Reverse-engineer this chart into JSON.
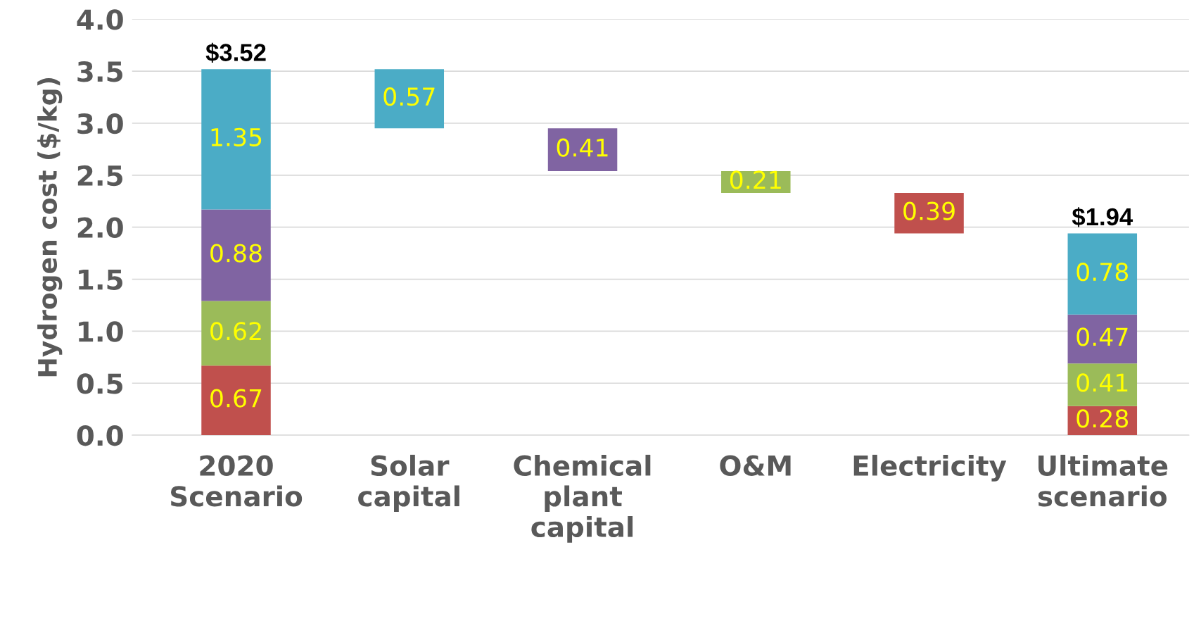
{
  "chart_data": {
    "type": "bar",
    "ylabel": "Hydrogen cost ($/kg)",
    "categories": [
      "2020\nScenario",
      "Solar\ncapital",
      "Chemical\nplant\ncapital",
      "O&M",
      "Electricity",
      "Ultimate\nscenario"
    ],
    "stacked": true,
    "series": [
      {
        "color": "#c0504d",
        "values": [
          0.67,
          null,
          null,
          null,
          null,
          0.28
        ]
      },
      {
        "color": "#9bbb59",
        "values": [
          0.62,
          null,
          null,
          null,
          null,
          0.41
        ]
      },
      {
        "color": "#8064a2",
        "values": [
          0.88,
          null,
          null,
          null,
          null,
          0.47
        ]
      },
      {
        "color": "#4bacc6",
        "values": [
          1.35,
          null,
          null,
          null,
          null,
          0.78
        ]
      },
      {
        "colors": [
          null,
          "#4bacc6",
          "#8064a2",
          "#9bbb59",
          "#c0504d",
          null
        ],
        "values": [
          null,
          0.57,
          0.41,
          0.21,
          0.39,
          null
        ],
        "base": [
          null,
          2.95,
          2.54,
          2.33,
          1.94,
          null
        ]
      }
    ],
    "data_labels": true,
    "totals": [
      "$3.52",
      null,
      null,
      null,
      null,
      "$1.94"
    ],
    "ylim": [
      0,
      4
    ],
    "yticks": [
      {
        "value": 0,
        "label": "0.0"
      },
      {
        "value": 0.5,
        "label": "0.5"
      },
      {
        "value": 1,
        "label": "1.0"
      },
      {
        "value": 1.5,
        "label": "1.5"
      },
      {
        "value": 2,
        "label": "2.0"
      },
      {
        "value": 2.5,
        "label": "2.5"
      },
      {
        "value": 3,
        "label": "3.0"
      },
      {
        "value": 3.5,
        "label": "3.5"
      },
      {
        "value": 4,
        "label": "4.0"
      }
    ],
    "grid": "y",
    "legend": false
  }
}
